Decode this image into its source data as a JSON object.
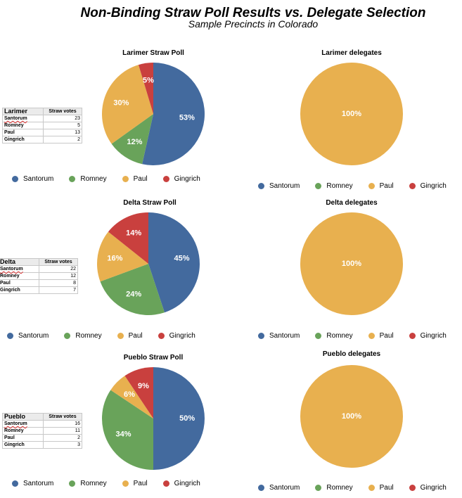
{
  "header": {
    "title": "Non-Binding Straw Poll Results vs. Delegate Selection",
    "subtitle": "Sample Precincts in Colorado"
  },
  "colors": {
    "Santorum": "#436a9e",
    "Romney": "#69a35a",
    "Paul": "#e8b04f",
    "Gingrich": "#c9403e"
  },
  "legend_labels": [
    "Santorum",
    "Romney",
    "Paul",
    "Gingrich"
  ],
  "chart_data": [
    {
      "type": "pie",
      "title": "Larimer Straw Poll",
      "categories": [
        "Santorum",
        "Romney",
        "Paul",
        "Gingrich"
      ],
      "values": [
        23,
        5,
        13,
        2
      ],
      "labels": [
        "53%",
        "12%",
        "30%",
        "5%"
      ],
      "legend": "bottom"
    },
    {
      "type": "pie",
      "title": "Larimer delegates",
      "categories": [
        "Santorum",
        "Romney",
        "Paul",
        "Gingrich"
      ],
      "values": [
        0,
        0,
        100,
        0
      ],
      "labels": [
        "",
        "",
        "100%",
        ""
      ],
      "legend": "bottom"
    },
    {
      "type": "pie",
      "title": "Delta Straw Poll",
      "categories": [
        "Santorum",
        "Romney",
        "Paul",
        "Gingrich"
      ],
      "values": [
        22,
        12,
        8,
        7
      ],
      "labels": [
        "45%",
        "24%",
        "16%",
        "14%"
      ],
      "legend": "bottom"
    },
    {
      "type": "pie",
      "title": "Delta delegates",
      "categories": [
        "Santorum",
        "Romney",
        "Paul",
        "Gingrich"
      ],
      "values": [
        0,
        0,
        100,
        0
      ],
      "labels": [
        "",
        "",
        "100%",
        ""
      ],
      "legend": "bottom"
    },
    {
      "type": "pie",
      "title": "Pueblo Straw Poll",
      "categories": [
        "Santorum",
        "Romney",
        "Paul",
        "Gingrich"
      ],
      "values": [
        16,
        11,
        2,
        3
      ],
      "labels": [
        "50%",
        "34%",
        "6%",
        "9%"
      ],
      "legend": "bottom"
    },
    {
      "type": "pie",
      "title": "Pueblo delegates",
      "categories": [
        "Santorum",
        "Romney",
        "Paul",
        "Gingrich"
      ],
      "values": [
        0,
        0,
        100,
        0
      ],
      "labels": [
        "",
        "",
        "100%",
        ""
      ],
      "legend": "bottom"
    }
  ],
  "tables": [
    {
      "county": "Larimer",
      "column": "Straw votes",
      "rows": [
        {
          "name": "Santorum",
          "votes": "23"
        },
        {
          "name": "Romney",
          "votes": "5"
        },
        {
          "name": "Paul",
          "votes": "13"
        },
        {
          "name": "Gingrich",
          "votes": "2"
        }
      ]
    },
    {
      "county": "Delta",
      "column": "Straw votes",
      "rows": [
        {
          "name": "Santorum",
          "votes": "22"
        },
        {
          "name": "Romney",
          "votes": "12"
        },
        {
          "name": "Paul",
          "votes": "8"
        },
        {
          "name": "Gingrich",
          "votes": "7"
        }
      ]
    },
    {
      "county": "Pueblo",
      "column": "Straw votes",
      "rows": [
        {
          "name": "Santorum",
          "votes": "16"
        },
        {
          "name": "Romney",
          "votes": "11"
        },
        {
          "name": "Paul",
          "votes": "2"
        },
        {
          "name": "Gingrich",
          "votes": "3"
        }
      ]
    }
  ]
}
